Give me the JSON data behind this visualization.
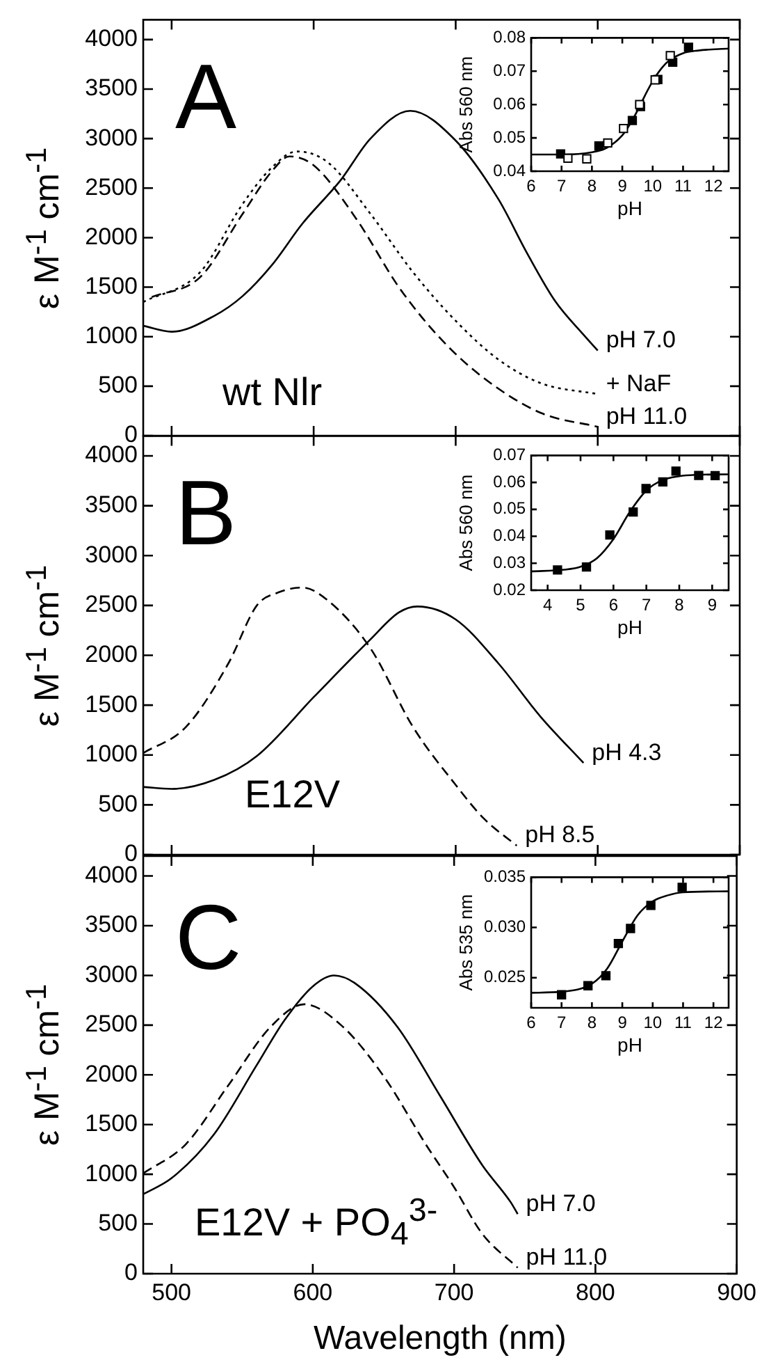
{
  "chart_data": [
    {
      "type": "line",
      "ylabel": "ε M$^{-1}$ cm$^{-1}$",
      "annotations": [
        "A",
        "wt Nlr"
      ],
      "xlim": [
        480,
        900
      ],
      "xticks": [
        500,
        600,
        700,
        800,
        900
      ],
      "ylim": [
        0,
        4200
      ],
      "yticks": [
        0,
        500,
        1000,
        1500,
        2000,
        2500,
        3000,
        3500,
        4000
      ],
      "tick_labels": "y",
      "series": [
        {
          "name": "pH 7.0",
          "color": "#000000",
          "line_style": "solid",
          "x": [
            480,
            500,
            530,
            550,
            571,
            592,
            619,
            640,
            668,
            700,
            730,
            750,
            770,
            790,
            800
          ],
          "values": [
            1110,
            1050,
            1210,
            1410,
            1730,
            2140,
            2580,
            3000,
            3280,
            2980,
            2390,
            1850,
            1360,
            1020,
            860
          ]
        },
        {
          "name": "+ NaF",
          "color": "#000000",
          "line_style": "dotted",
          "x": [
            480,
            520,
            550,
            570,
            588,
            610,
            640,
            670,
            700,
            730,
            760,
            800
          ],
          "values": [
            1350,
            1650,
            2340,
            2700,
            2870,
            2760,
            2240,
            1650,
            1160,
            770,
            530,
            420
          ]
        },
        {
          "name": "pH 11.0",
          "color": "#000000",
          "line_style": "dashed",
          "x": [
            486,
            520,
            550,
            570,
            583,
            600,
            630,
            660,
            690,
            720,
            760,
            800
          ],
          "values": [
            1400,
            1600,
            2240,
            2660,
            2820,
            2730,
            2190,
            1500,
            970,
            580,
            230,
            90
          ]
        }
      ]
    },
    {
      "type": "scatter",
      "xlabel": "pH",
      "ylabel": "Abs 560 nm",
      "xlim": [
        6,
        12.5
      ],
      "xticks": [
        6,
        7,
        8,
        9,
        10,
        11,
        12
      ],
      "ylim": [
        0.04,
        0.08
      ],
      "yticks": [
        0.04,
        0.05,
        0.06,
        0.07,
        0.08
      ],
      "series": [
        {
          "type": "line",
          "color": "#000000",
          "x": [
            6,
            7,
            8,
            8.5,
            9,
            9.25,
            9.5,
            9.75,
            10,
            10.25,
            10.5,
            11,
            11.5,
            12.5
          ],
          "values": [
            0.045,
            0.045,
            0.0457,
            0.0471,
            0.0508,
            0.0541,
            0.0582,
            0.0628,
            0.067,
            0.0704,
            0.0729,
            0.0754,
            0.0762,
            0.0768
          ]
        },
        {
          "color": "#000000",
          "marker": "square",
          "x": [
            6.97,
            8.23,
            9.33,
            9.6,
            10.17,
            10.66,
            11.18
          ],
          "values": [
            0.0452,
            0.0476,
            0.0552,
            0.0594,
            0.0675,
            0.0727,
            0.0772
          ]
        },
        {
          "color": "#ffffff",
          "marker": "square",
          "x": [
            7.21,
            7.83,
            8.52,
            9.04,
            9.57,
            10.08,
            10.58
          ],
          "values": [
            0.0439,
            0.0437,
            0.0485,
            0.0528,
            0.06,
            0.0674,
            0.0747
          ]
        }
      ]
    },
    {
      "type": "line",
      "ylabel": "ε M$^{-1}$ cm$^{-1}$",
      "annotations": [
        "B",
        "E12V"
      ],
      "xlim": [
        480,
        900
      ],
      "xticks": [
        500,
        600,
        700,
        800,
        900
      ],
      "ylim": [
        0,
        4200
      ],
      "yticks": [
        0,
        500,
        1000,
        1500,
        2000,
        2500,
        3000,
        3500,
        4000
      ],
      "tick_labels": "y",
      "series": [
        {
          "name": "pH 4.3",
          "color": "#000000",
          "line_style": "solid",
          "x": [
            480,
            500,
            530,
            560,
            600,
            640,
            660,
            673,
            700,
            730,
            760,
            790
          ],
          "values": [
            680,
            660,
            750,
            990,
            1580,
            2160,
            2430,
            2490,
            2360,
            1920,
            1380,
            920
          ]
        },
        {
          "name": "pH 8.5",
          "color": "#000000",
          "line_style": "dashed",
          "x": [
            480,
            510,
            540,
            560,
            575,
            592,
            610,
            640,
            670,
            700,
            720,
            743
          ],
          "values": [
            1020,
            1280,
            1920,
            2500,
            2630,
            2680,
            2550,
            2070,
            1280,
            700,
            360,
            90
          ]
        }
      ]
    },
    {
      "type": "scatter",
      "xlabel": "pH",
      "ylabel": "Abs 560 nm",
      "xlim": [
        3.5,
        9.5
      ],
      "xticks": [
        4,
        5,
        6,
        7,
        8,
        9
      ],
      "ylim": [
        0.02,
        0.07
      ],
      "yticks": [
        0.02,
        0.03,
        0.04,
        0.05,
        0.06,
        0.07
      ],
      "series": [
        {
          "type": "line",
          "color": "#000000",
          "x": [
            3.5,
            4.5,
            5,
            5.5,
            6,
            6.5,
            7,
            7.5,
            8,
            8.5,
            9.5
          ],
          "values": [
            0.027,
            0.0276,
            0.0287,
            0.0319,
            0.039,
            0.0491,
            0.057,
            0.0609,
            0.0623,
            0.0628,
            0.063
          ]
        },
        {
          "color": "#000000",
          "marker": "square",
          "x": [
            4.3,
            5.18,
            5.89,
            6.6,
            6.99,
            7.5,
            7.9,
            8.59,
            9.09
          ],
          "values": [
            0.0275,
            0.0286,
            0.0405,
            0.049,
            0.0577,
            0.0602,
            0.0642,
            0.0626,
            0.0625
          ]
        }
      ]
    },
    {
      "type": "line",
      "ylabel": "ε M$^{-1}$ cm$^{-1}$",
      "xlabel": "Wavelength (nm)",
      "annotations": [
        "C",
        "E12V + PO$_{4}$$^{3-}$"
      ],
      "xlim": [
        480,
        900
      ],
      "xticks": [
        500,
        600,
        700,
        800,
        900
      ],
      "ylim": [
        0,
        4200
      ],
      "yticks": [
        0,
        500,
        1000,
        1500,
        2000,
        2500,
        3000,
        3500,
        4000
      ],
      "series": [
        {
          "name": "pH 7.0",
          "color": "#000000",
          "line_style": "solid",
          "x": [
            480,
            500,
            530,
            560,
            580,
            600,
            615,
            630,
            660,
            690,
            720,
            740,
            745
          ],
          "values": [
            800,
            960,
            1400,
            2090,
            2550,
            2890,
            3000,
            2920,
            2480,
            1790,
            1090,
            720,
            600
          ]
        },
        {
          "name": "pH 11.0",
          "color": "#000000",
          "line_style": "dashed",
          "x": [
            480,
            510,
            540,
            570,
            594,
            620,
            650,
            680,
            700,
            720,
            745
          ],
          "values": [
            1010,
            1300,
            1890,
            2480,
            2710,
            2500,
            1990,
            1300,
            870,
            400,
            60
          ]
        }
      ]
    },
    {
      "type": "scatter",
      "xlabel": "pH",
      "ylabel": "Abs 535 nm",
      "xlim": [
        6,
        12.5
      ],
      "xticks": [
        6,
        7,
        8,
        9,
        10,
        11,
        12
      ],
      "ylim": [
        0.022,
        0.035
      ],
      "yticks": [
        {
          "value": 0.025,
          "label": "0.025"
        },
        {
          "value": 0.03,
          "label": "0.030"
        },
        {
          "value": 0.035,
          "label": "0.035"
        }
      ],
      "series": [
        {
          "type": "line",
          "color": "#000000",
          "x": [
            6,
            7,
            8,
            8.5,
            9,
            9.5,
            10,
            10.5,
            11,
            12.5
          ],
          "values": [
            0.0235,
            0.0236,
            0.0244,
            0.0259,
            0.0286,
            0.0312,
            0.0326,
            0.0332,
            0.0335,
            0.0336
          ]
        },
        {
          "color": "#000000",
          "marker": "square",
          "x": [
            7.0,
            7.87,
            8.46,
            8.87,
            9.27,
            9.94,
            10.97
          ],
          "values": [
            0.0233,
            0.0242,
            0.0252,
            0.0284,
            0.0299,
            0.0322,
            0.034
          ]
        }
      ]
    }
  ]
}
